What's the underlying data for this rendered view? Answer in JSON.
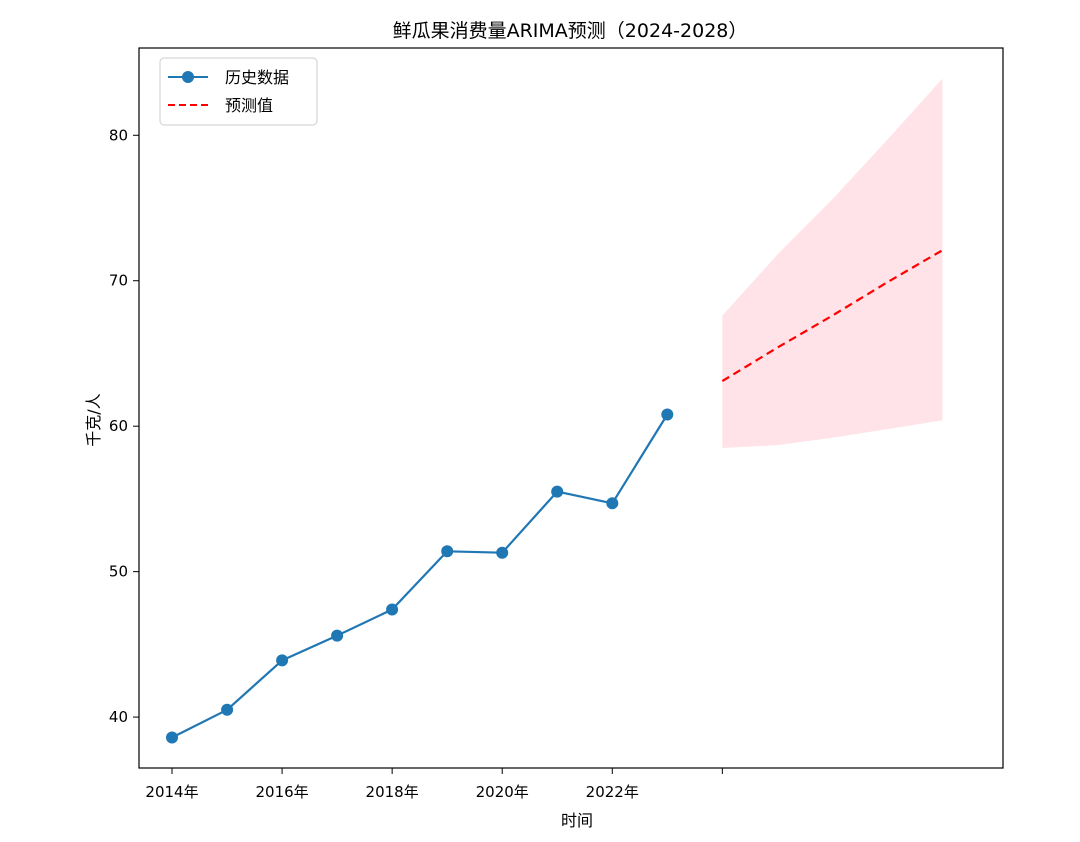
{
  "chart_data": {
    "type": "line",
    "title": "鲜瓜果消费量ARIMA预测（2024-2028）",
    "xlabel": "时间",
    "ylabel": "千克/人",
    "xlim": [
      2013.4,
      2029.1
    ],
    "ylim": [
      36.5,
      86.0
    ],
    "x_ticks": [
      {
        "value": 2014,
        "label": "2014年"
      },
      {
        "value": 2016,
        "label": "2016年"
      },
      {
        "value": 2018,
        "label": "2018年"
      },
      {
        "value": 2020,
        "label": "2020年"
      },
      {
        "value": 2022,
        "label": "2022年"
      },
      {
        "value": 2024,
        "label": ""
      }
    ],
    "y_ticks": [
      {
        "value": 40,
        "label": "40"
      },
      {
        "value": 50,
        "label": "50"
      },
      {
        "value": 60,
        "label": "60"
      },
      {
        "value": 70,
        "label": "70"
      },
      {
        "value": 80,
        "label": "80"
      }
    ],
    "legend_position": "top-left",
    "grid": false,
    "series": [
      {
        "name": "历史数据",
        "style": "solid-line-with-circle-markers",
        "color": "#1f77b4",
        "x": [
          2014,
          2015,
          2016,
          2017,
          2018,
          2019,
          2020,
          2021,
          2022,
          2023
        ],
        "values": [
          38.6,
          40.5,
          43.9,
          45.6,
          47.4,
          51.4,
          51.3,
          55.5,
          54.7,
          60.8
        ]
      },
      {
        "name": "预测值",
        "style": "dashed-line",
        "color": "#ff0000",
        "x": [
          2024,
          2025,
          2026,
          2027,
          2028
        ],
        "values": [
          63.1,
          65.4,
          67.6,
          69.9,
          72.1
        ],
        "ci_lower": [
          58.5,
          58.7,
          59.2,
          59.8,
          60.4
        ],
        "ci_upper": [
          67.6,
          71.8,
          75.6,
          79.7,
          83.9
        ],
        "ci_color": "#ffc0cb"
      }
    ]
  }
}
